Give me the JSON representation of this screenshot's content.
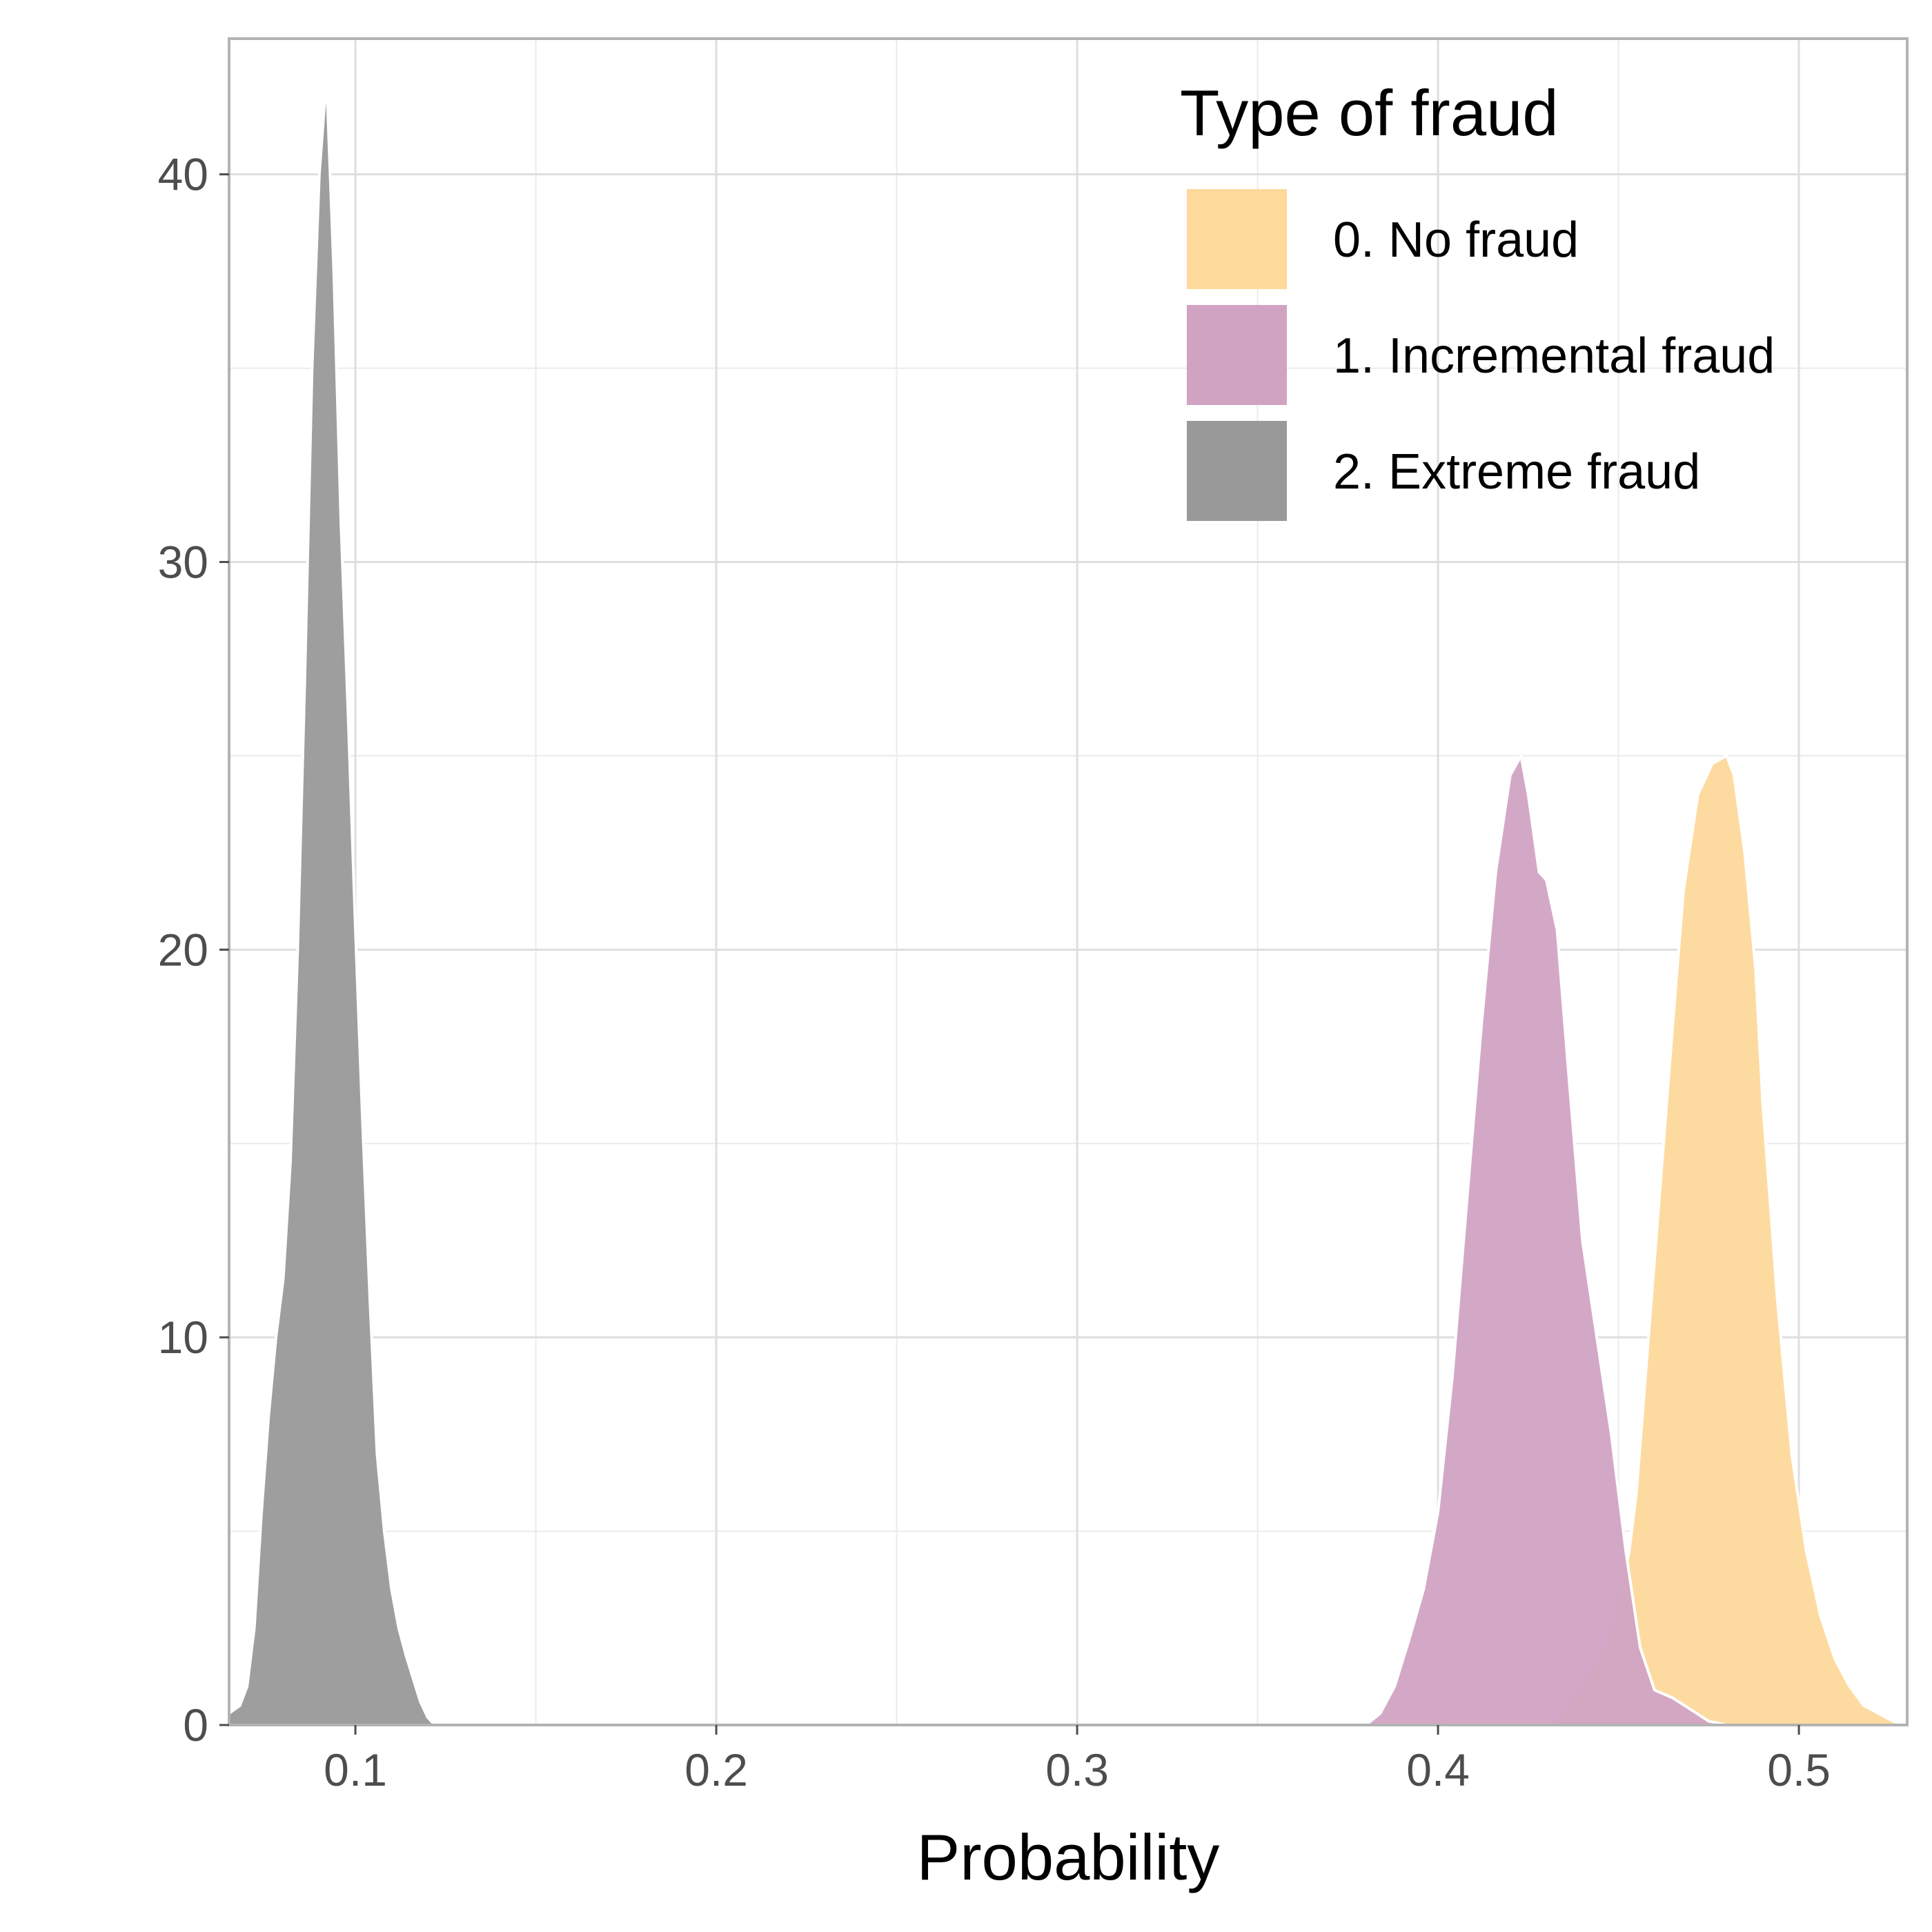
{
  "chart_data": {
    "type": "area",
    "title": "",
    "xlabel": "Probability",
    "ylabel": "",
    "xlim": [
      0.065,
      0.53
    ],
    "ylim": [
      0,
      43.5
    ],
    "x_ticks": [
      0.1,
      0.2,
      0.3,
      0.4,
      0.5
    ],
    "x_tick_labels": [
      "0.1",
      "0.2",
      "0.3",
      "0.4",
      "0.5"
    ],
    "y_ticks": [
      0,
      10,
      20,
      30,
      40
    ],
    "y_tick_labels": [
      "0",
      "10",
      "20",
      "30",
      "40"
    ],
    "grid": true,
    "legend": {
      "title": "Type of fraud",
      "position": "top-right"
    },
    "series": [
      {
        "name": "0. No fraud",
        "color": "#fdd99b",
        "x": [
          0.432,
          0.44,
          0.445,
          0.45,
          0.453,
          0.455,
          0.46,
          0.465,
          0.468,
          0.472,
          0.476,
          0.48,
          0.482,
          0.485,
          0.488,
          0.49,
          0.494,
          0.498,
          0.502,
          0.506,
          0.51,
          0.514,
          0.518,
          0.522,
          0.526,
          0.53
        ],
        "y": [
          0,
          1.0,
          1.8,
          3.0,
          4.5,
          6.0,
          12.0,
          18.0,
          21.5,
          24.0,
          24.8,
          25.0,
          24.5,
          22.5,
          19.5,
          16.0,
          11.0,
          7.0,
          4.5,
          2.8,
          1.7,
          1.0,
          0.5,
          0.3,
          0.1,
          0
        ]
      },
      {
        "name": "1. Incremental fraud",
        "color": "#d1a3c3",
        "x": [
          0.38,
          0.384,
          0.388,
          0.392,
          0.396,
          0.4,
          0.404,
          0.408,
          0.412,
          0.416,
          0.42,
          0.423,
          0.425,
          0.428,
          0.43,
          0.433,
          0.436,
          0.44,
          0.444,
          0.448,
          0.452,
          0.456,
          0.46,
          0.465,
          0.47,
          0.475,
          0.48
        ],
        "y": [
          0,
          0.3,
          1.0,
          2.2,
          3.5,
          5.5,
          9.0,
          13.5,
          18.0,
          22.0,
          24.5,
          25.0,
          24.0,
          22.0,
          21.8,
          20.5,
          17.0,
          12.5,
          10.0,
          7.5,
          4.5,
          2.0,
          0.9,
          0.7,
          0.4,
          0.1,
          0
        ]
      },
      {
        "name": "2. Extreme fraud",
        "color": "#999999",
        "x": [
          0.065,
          0.068,
          0.07,
          0.072,
          0.074,
          0.076,
          0.078,
          0.08,
          0.082,
          0.084,
          0.086,
          0.088,
          0.09,
          0.092,
          0.094,
          0.096,
          0.098,
          0.1,
          0.102,
          0.104,
          0.106,
          0.108,
          0.11,
          0.112,
          0.114,
          0.116,
          0.118,
          0.12,
          0.122
        ],
        "y": [
          0.3,
          0.5,
          1.0,
          2.5,
          5.5,
          8.0,
          10.0,
          11.5,
          14.5,
          20.0,
          27.0,
          35.0,
          40.0,
          42.5,
          37.5,
          31.0,
          26.0,
          20.5,
          15.5,
          11.0,
          7.0,
          5.0,
          3.5,
          2.5,
          1.8,
          1.2,
          0.6,
          0.2,
          0
        ]
      }
    ]
  }
}
